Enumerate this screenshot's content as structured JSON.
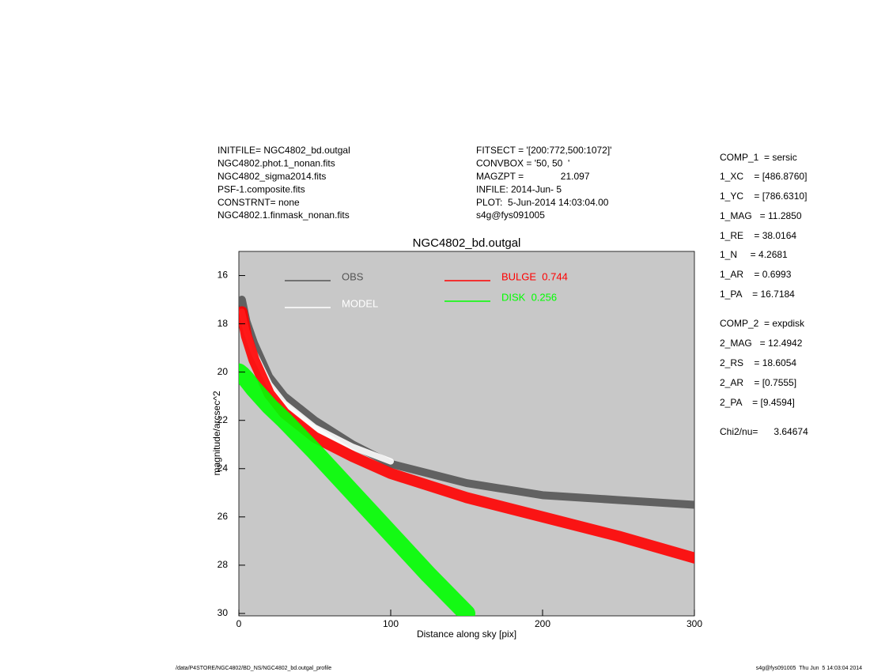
{
  "chart_data": {
    "type": "line",
    "title": "NGC4802_bd.outgal",
    "xlabel": "Distance along sky [pix]",
    "ylabel": "magnitude/arcsec^2",
    "xlim": [
      0,
      300
    ],
    "xticks": [
      0,
      100,
      200,
      300
    ],
    "ylim": [
      15,
      30.1
    ],
    "yticks": [
      16,
      18,
      20,
      22,
      24,
      26,
      28,
      30
    ],
    "yinverted": true,
    "background": "#c8c8c8",
    "x": [
      0,
      2,
      5,
      10,
      20,
      30,
      50,
      75,
      100,
      125,
      150,
      200,
      250,
      300
    ],
    "series": [
      {
        "name": "OBS",
        "color": "#555555",
        "values": [
          null,
          17,
          17.9,
          18.8,
          20.2,
          21.0,
          22.0,
          23.0,
          23.8,
          24.2,
          24.6,
          25.1,
          25.3,
          25.5
        ]
      },
      {
        "name": "MODEL",
        "color": "#ffffff",
        "values": [
          null,
          17.5,
          18.3,
          19.2,
          20.5,
          21.3,
          22.3,
          23.1,
          23.7,
          null,
          null,
          null,
          null,
          null
        ]
      },
      {
        "name": "BULGE  0.744",
        "color": "#ff0000",
        "values": [
          null,
          17.5,
          18.5,
          19.5,
          20.9,
          21.7,
          22.7,
          23.5,
          24.2,
          24.7,
          25.2,
          26.0,
          26.8,
          27.7
        ]
      },
      {
        "name": "DISK  0.256",
        "color": "#00ff00",
        "values": [
          20,
          20.1,
          20.3,
          20.7,
          21.4,
          22.0,
          23.3,
          25.0,
          26.7,
          28.4,
          30,
          null,
          null,
          null
        ]
      }
    ]
  },
  "header_left": [
    "INITFILE= NGC4802_bd.outgal",
    "NGC4802.phot.1_nonan.fits",
    "NGC4802_sigma2014.fits",
    "PSF-1.composite.fits",
    "CONSTRNT= none",
    "NGC4802.1.finmask_nonan.fits"
  ],
  "header_middle": [
    "FITSECT = '[200:772,500:1072]'",
    "CONVBOX = '50, 50  '",
    "MAGZPT =              21.097",
    "INFILE: 2014-Jun- 5",
    "PLOT:  5-Jun-2014 14:03:04.00",
    "s4g@fys091005"
  ],
  "parameters": [
    "COMP_1  = sersic",
    "1_XC    = [486.8760]",
    "1_YC    = [786.6310]",
    "1_MAG   = 11.2850",
    "1_RE    = 38.0164",
    "1_N     = 4.2681",
    "1_AR    = 0.6993",
    "1_PA    = 16.7184",
    "COMP_2  = expdisk",
    "2_MAG   = 12.4942",
    "2_RS    = 18.6054",
    "2_AR    = [0.7555]",
    "2_PA    = [9.4594]",
    "Chi2/nu=      3.64674"
  ],
  "footer_left": "/data/P4STORE/NGC4802/BD_NS/NGC4802_bd.outgal_profile",
  "footer_right": "s4g@fys091005  Thu Jun  5 14:03:04 2014"
}
